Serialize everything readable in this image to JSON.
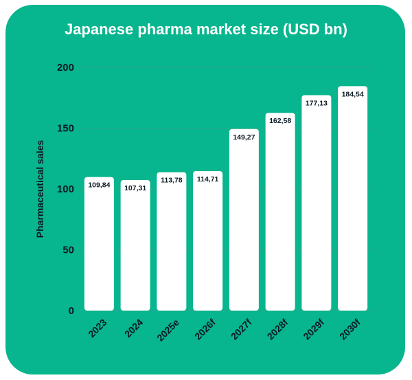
{
  "colors": {
    "background": "#07b58e",
    "bar": "#ffffff",
    "text": "#0a1a24",
    "gridline": "#2ea88a"
  },
  "chart_data": {
    "type": "bar",
    "title": "Japanese pharma market size (USD bn)",
    "xlabel": "",
    "ylabel": "Pharmaceutical sales",
    "categories": [
      "2023",
      "2024",
      "2025e",
      "2026f",
      "2027f",
      "2028f",
      "2029f",
      "2030f"
    ],
    "values": [
      109.84,
      107.31,
      113.78,
      114.71,
      149.27,
      162.58,
      177.13,
      184.54
    ],
    "value_labels": [
      "109,84",
      "107,31",
      "113,78",
      "114,71",
      "149,27",
      "162,58",
      "177,13",
      "184,54"
    ],
    "ylim": [
      0,
      200
    ],
    "yticks": [
      0,
      50,
      100,
      150,
      200
    ],
    "grid": true,
    "legend": "none"
  }
}
